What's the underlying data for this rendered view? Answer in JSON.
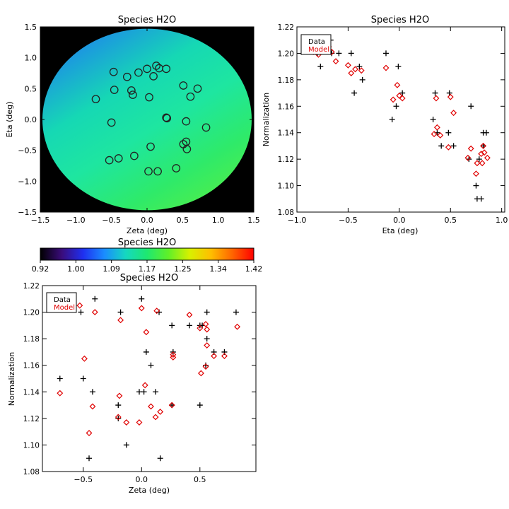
{
  "chart_data": [
    {
      "id": "map",
      "type": "heatmap",
      "title": "Species H2O",
      "xlabel": "Zeta (deg)",
      "ylabel": "Eta (deg)",
      "xlim": [
        -1.5,
        1.5
      ],
      "ylim": [
        -1.5,
        1.5
      ],
      "xticks": [
        -1.5,
        -1.0,
        -0.5,
        0.0,
        0.5,
        1.0,
        1.5
      ],
      "xtick_labels": [
        "−1.5",
        "−1.0",
        "−0.5",
        "0.0",
        "0.5",
        "1.0",
        "1.5"
      ],
      "yticks": [
        -1.5,
        -1.0,
        -0.5,
        0.0,
        0.5,
        1.0,
        1.5
      ],
      "ytick_labels": [
        "−1.5",
        "−1.0",
        "−0.5",
        "0.0",
        "0.5",
        "1.0",
        "1.5"
      ],
      "field_radius_deg": 1.47,
      "background_color": "#000000",
      "gradient_colors": [
        "#1e7ff0",
        "#16d8b4",
        "#1ee6a0",
        "#2eea6a",
        "#54ef45"
      ],
      "fibers": [
        {
          "x": -0.47,
          "y": 0.77
        },
        {
          "x": -0.28,
          "y": 0.69
        },
        {
          "x": -0.12,
          "y": 0.76
        },
        {
          "x": 0.0,
          "y": 0.82
        },
        {
          "x": 0.13,
          "y": 0.87
        },
        {
          "x": 0.17,
          "y": 0.83
        },
        {
          "x": 0.27,
          "y": 0.82
        },
        {
          "x": 0.09,
          "y": 0.7
        },
        {
          "x": -0.46,
          "y": 0.48
        },
        {
          "x": -0.22,
          "y": 0.47
        },
        {
          "x": -0.72,
          "y": 0.33
        },
        {
          "x": -0.2,
          "y": 0.4
        },
        {
          "x": 0.03,
          "y": 0.36
        },
        {
          "x": 0.51,
          "y": 0.55
        },
        {
          "x": 0.71,
          "y": 0.5
        },
        {
          "x": 0.61,
          "y": 0.37
        },
        {
          "x": -0.5,
          "y": -0.05
        },
        {
          "x": 0.28,
          "y": 0.02
        },
        {
          "x": 0.27,
          "y": 0.03
        },
        {
          "x": 0.55,
          "y": -0.03
        },
        {
          "x": 0.83,
          "y": -0.13
        },
        {
          "x": 0.51,
          "y": -0.4
        },
        {
          "x": 0.55,
          "y": -0.36
        },
        {
          "x": 0.56,
          "y": -0.48
        },
        {
          "x": 0.05,
          "y": -0.44
        },
        {
          "x": -0.18,
          "y": -0.59
        },
        {
          "x": -0.4,
          "y": -0.63
        },
        {
          "x": -0.53,
          "y": -0.66
        },
        {
          "x": 0.41,
          "y": -0.79
        },
        {
          "x": 0.02,
          "y": -0.84
        },
        {
          "x": 0.15,
          "y": -0.84
        }
      ]
    },
    {
      "id": "colorbar",
      "type": "heatmap",
      "title": "Species H2O",
      "range": [
        0.92,
        1.42
      ],
      "tick_labels": [
        "0.92",
        "1.00",
        "1.09",
        "1.17",
        "1.25",
        "1.34",
        "1.42"
      ],
      "colors": [
        "#000000",
        "#3a0c7a",
        "#1f2ff0",
        "#1a8cff",
        "#15d8c0",
        "#1ee870",
        "#60f028",
        "#d8f000",
        "#ffbe00",
        "#ff6400",
        "#ff0000"
      ]
    },
    {
      "id": "eta",
      "type": "scatter",
      "title": "Species H2O",
      "xlabel": "Eta (deg)",
      "ylabel": "Normalization",
      "xlim": [
        -1.0,
        1.03
      ],
      "ylim": [
        1.08,
        1.22
      ],
      "xticks": [
        -1.0,
        -0.5,
        0.0,
        0.5,
        1.0
      ],
      "xtick_labels": [
        "−1.0",
        "−0.5",
        "0.0",
        "0.5",
        "1.0"
      ],
      "yticks": [
        1.08,
        1.1,
        1.12,
        1.14,
        1.16,
        1.18,
        1.2,
        1.22
      ],
      "ytick_labels": [
        "1.08",
        "1.10",
        "1.12",
        "1.14",
        "1.16",
        "1.18",
        "1.20",
        "1.22"
      ],
      "legend": {
        "position": "top-left",
        "data_label": "Data",
        "model_label": "Model"
      },
      "series": [
        {
          "name": "Data",
          "marker": "plus",
          "color": "#000000",
          "points": [
            [
              -0.84,
              1.21
            ],
            [
              -0.8,
              1.2
            ],
            [
              -0.77,
              1.19
            ],
            [
              -0.67,
              1.21
            ],
            [
              -0.66,
              1.2
            ],
            [
              -0.59,
              1.2
            ],
            [
              -0.47,
              1.2
            ],
            [
              -0.44,
              1.17
            ],
            [
              -0.39,
              1.19
            ],
            [
              -0.36,
              1.18
            ],
            [
              -0.13,
              1.2
            ],
            [
              -0.07,
              1.15
            ],
            [
              -0.03,
              1.16
            ],
            [
              -0.01,
              1.19
            ],
            [
              0.03,
              1.17
            ],
            [
              0.35,
              1.17
            ],
            [
              0.33,
              1.15
            ],
            [
              0.37,
              1.14
            ],
            [
              0.41,
              1.13
            ],
            [
              0.49,
              1.17
            ],
            [
              0.48,
              1.14
            ],
            [
              0.53,
              1.13
            ],
            [
              0.68,
              1.12
            ],
            [
              0.7,
              1.16
            ],
            [
              0.75,
              1.1
            ],
            [
              0.76,
              1.09
            ],
            [
              0.8,
              1.09
            ],
            [
              0.82,
              1.14
            ],
            [
              0.85,
              1.14
            ],
            [
              0.82,
              1.13
            ],
            [
              0.78,
              1.12
            ]
          ]
        },
        {
          "name": "Model",
          "marker": "diamond",
          "color": "#e00000",
          "points": [
            [
              -0.85,
              1.203
            ],
            [
              -0.84,
              1.201
            ],
            [
              -0.79,
              1.199
            ],
            [
              -0.69,
              1.205
            ],
            [
              -0.66,
              1.201
            ],
            [
              -0.62,
              1.194
            ],
            [
              -0.5,
              1.191
            ],
            [
              -0.47,
              1.185
            ],
            [
              -0.43,
              1.188
            ],
            [
              -0.37,
              1.187
            ],
            [
              -0.13,
              1.189
            ],
            [
              -0.06,
              1.165
            ],
            [
              -0.02,
              1.176
            ],
            [
              0.0,
              1.168
            ],
            [
              0.03,
              1.166
            ],
            [
              0.34,
              1.139
            ],
            [
              0.36,
              1.166
            ],
            [
              0.37,
              1.144
            ],
            [
              0.4,
              1.138
            ],
            [
              0.48,
              1.129
            ],
            [
              0.5,
              1.167
            ],
            [
              0.53,
              1.155
            ],
            [
              0.67,
              1.121
            ],
            [
              0.7,
              1.128
            ],
            [
              0.75,
              1.109
            ],
            [
              0.76,
              1.117
            ],
            [
              0.81,
              1.117
            ],
            [
              0.8,
              1.124
            ],
            [
              0.82,
              1.13
            ],
            [
              0.86,
              1.121
            ],
            [
              0.83,
              1.125
            ]
          ]
        }
      ]
    },
    {
      "id": "zeta",
      "type": "scatter",
      "title": "Species H2O",
      "xlabel": "Zeta (deg)",
      "ylabel": "Normalization",
      "xlim": [
        -0.85,
        0.98
      ],
      "ylim": [
        1.08,
        1.22
      ],
      "xticks": [
        -0.5,
        0.0,
        0.5
      ],
      "xtick_labels": [
        "−0.5",
        "0.0",
        "0.5"
      ],
      "yticks": [
        1.08,
        1.1,
        1.12,
        1.14,
        1.16,
        1.18,
        1.2,
        1.22
      ],
      "ytick_labels": [
        "1.08",
        "1.10",
        "1.12",
        "1.14",
        "1.16",
        "1.18",
        "1.20",
        "1.22"
      ],
      "legend": {
        "position": "top-left",
        "data_label": "Data",
        "model_label": "Model"
      },
      "series": [
        {
          "name": "Data",
          "marker": "plus",
          "color": "#000000",
          "points": [
            [
              -0.7,
              1.15
            ],
            [
              -0.52,
              1.2
            ],
            [
              -0.5,
              1.15
            ],
            [
              -0.45,
              1.09
            ],
            [
              -0.42,
              1.14
            ],
            [
              -0.4,
              1.21
            ],
            [
              -0.2,
              1.13
            ],
            [
              -0.2,
              1.12
            ],
            [
              -0.18,
              1.2
            ],
            [
              -0.13,
              1.1
            ],
            [
              -0.02,
              1.14
            ],
            [
              0.0,
              1.21
            ],
            [
              0.02,
              1.14
            ],
            [
              0.04,
              1.17
            ],
            [
              0.08,
              1.16
            ],
            [
              0.12,
              1.14
            ],
            [
              0.15,
              1.2
            ],
            [
              0.16,
              1.09
            ],
            [
              0.26,
              1.19
            ],
            [
              0.27,
              1.17
            ],
            [
              0.26,
              1.13
            ],
            [
              0.41,
              1.19
            ],
            [
              0.5,
              1.19
            ],
            [
              0.5,
              1.13
            ],
            [
              0.52,
              1.19
            ],
            [
              0.55,
              1.16
            ],
            [
              0.56,
              1.18
            ],
            [
              0.56,
              1.2
            ],
            [
              0.62,
              1.17
            ],
            [
              0.71,
              1.17
            ],
            [
              0.81,
              1.2
            ]
          ]
        },
        {
          "name": "Model",
          "marker": "diamond",
          "color": "#e00000",
          "points": [
            [
              -0.7,
              1.139
            ],
            [
              -0.53,
              1.205
            ],
            [
              -0.49,
              1.165
            ],
            [
              -0.45,
              1.109
            ],
            [
              -0.42,
              1.129
            ],
            [
              -0.4,
              1.2
            ],
            [
              -0.2,
              1.121
            ],
            [
              -0.19,
              1.137
            ],
            [
              -0.18,
              1.194
            ],
            [
              -0.13,
              1.117
            ],
            [
              -0.02,
              1.117
            ],
            [
              0.0,
              1.203
            ],
            [
              0.03,
              1.145
            ],
            [
              0.04,
              1.185
            ],
            [
              0.08,
              1.129
            ],
            [
              0.12,
              1.121
            ],
            [
              0.13,
              1.201
            ],
            [
              0.16,
              1.125
            ],
            [
              0.26,
              1.13
            ],
            [
              0.27,
              1.166
            ],
            [
              0.27,
              1.168
            ],
            [
              0.41,
              1.198
            ],
            [
              0.5,
              1.188
            ],
            [
              0.51,
              1.154
            ],
            [
              0.55,
              1.191
            ],
            [
              0.55,
              1.159
            ],
            [
              0.56,
              1.175
            ],
            [
              0.56,
              1.187
            ],
            [
              0.62,
              1.167
            ],
            [
              0.71,
              1.167
            ],
            [
              0.82,
              1.189
            ]
          ]
        }
      ]
    }
  ]
}
